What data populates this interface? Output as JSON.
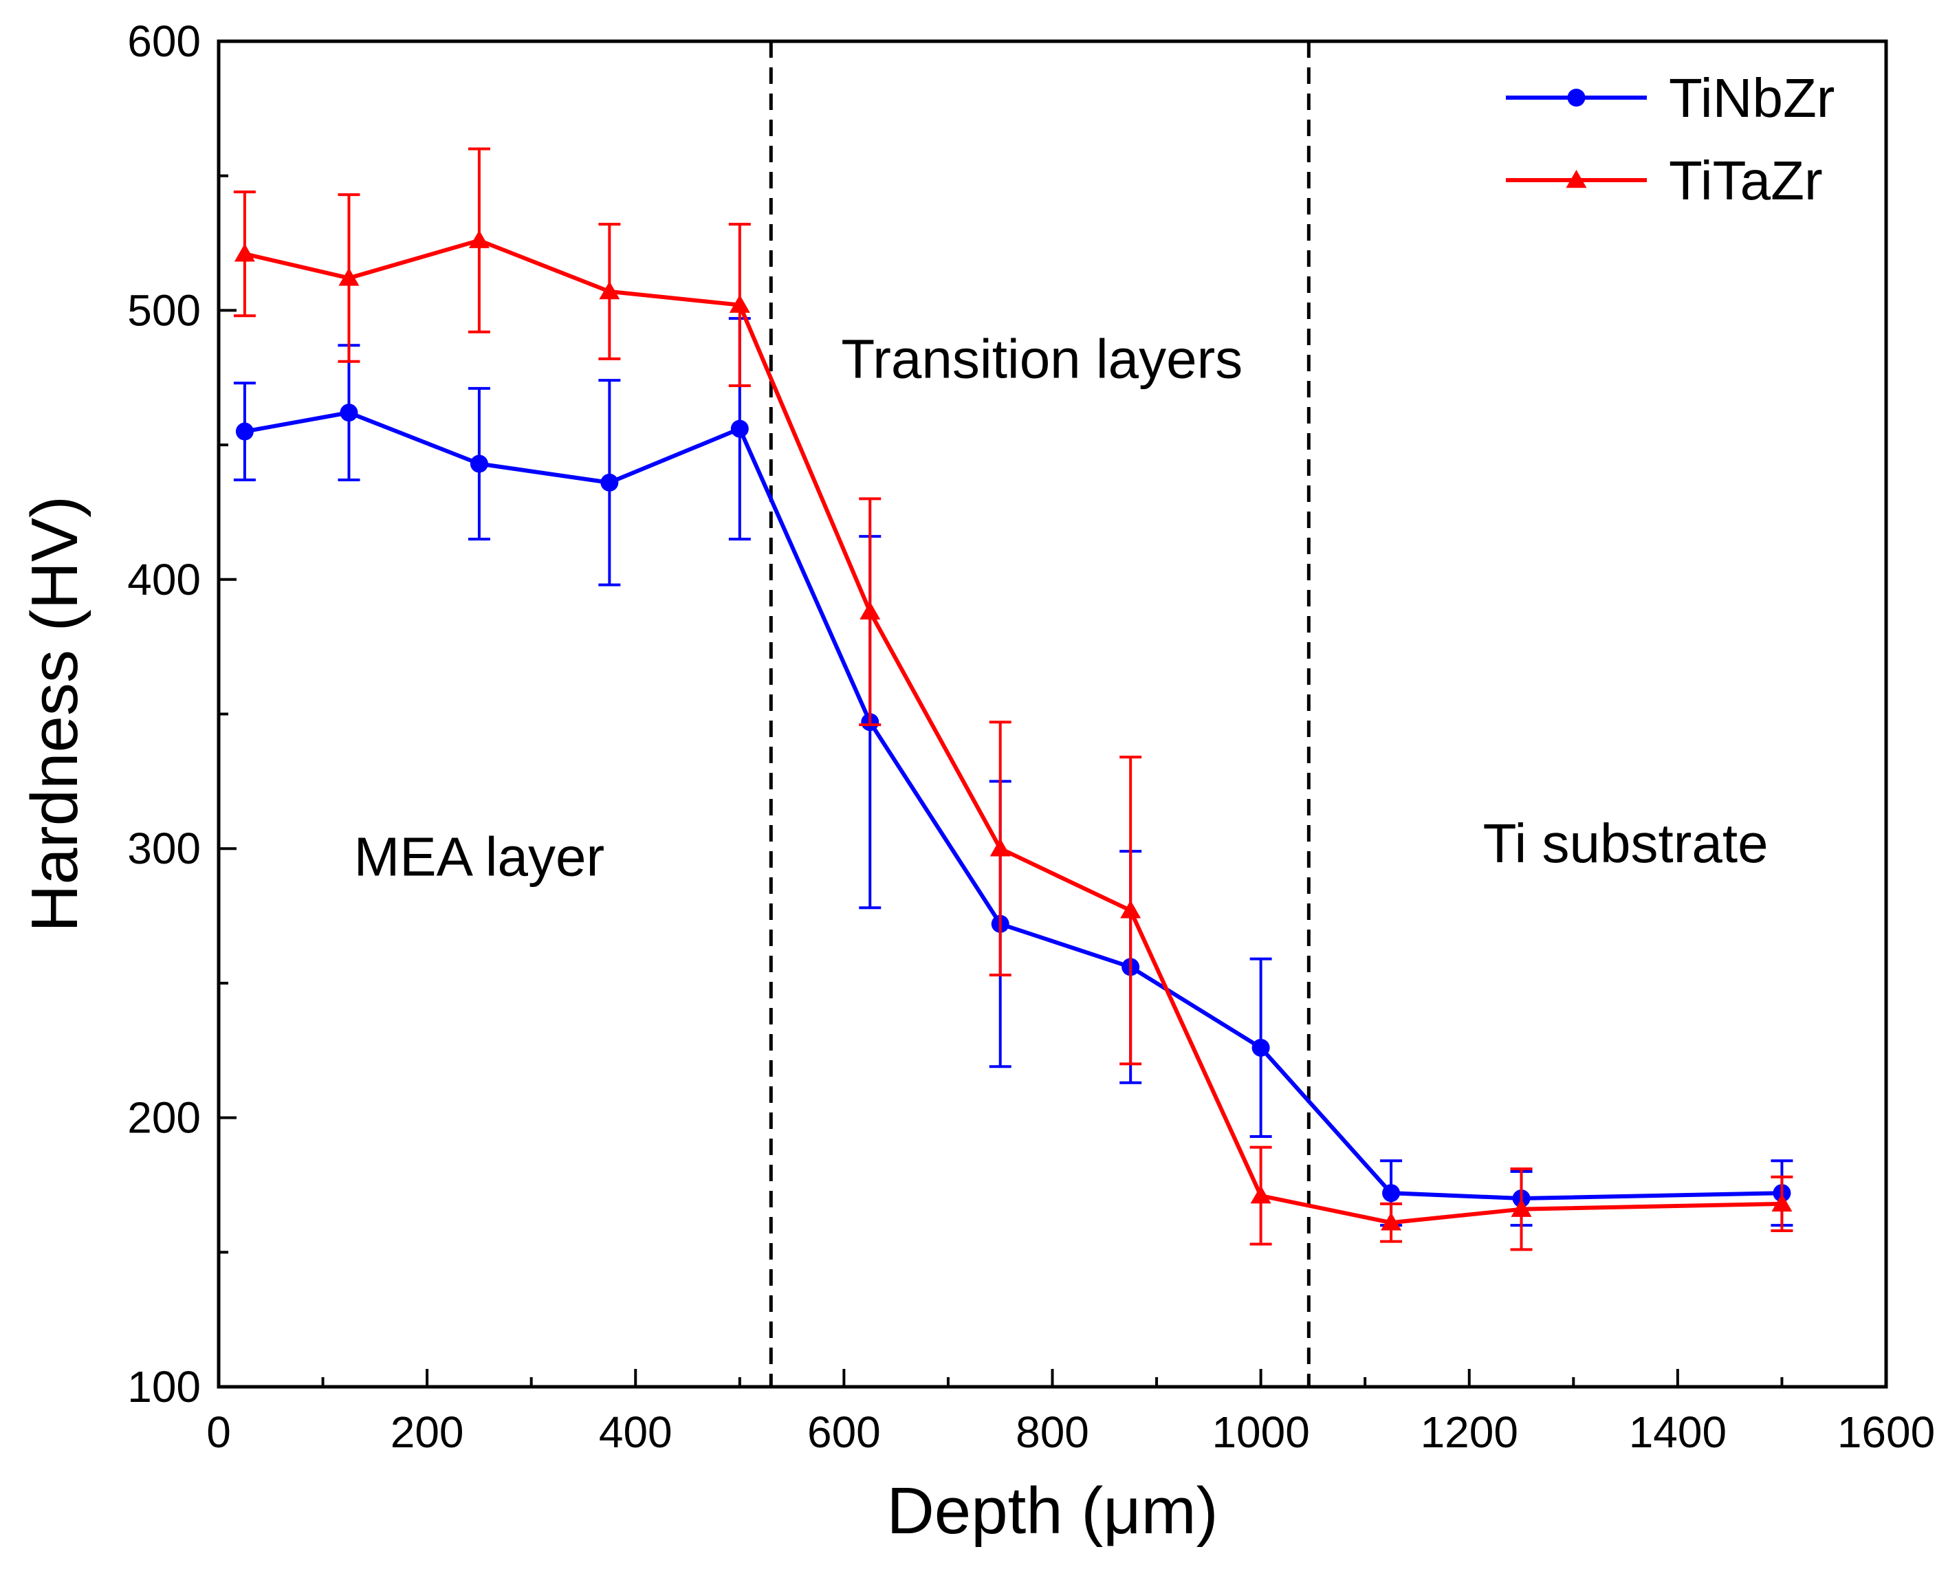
{
  "chart_data": {
    "type": "line",
    "xlabel": "Depth (μm)",
    "ylabel": "Hardness (HV)",
    "xlim": [
      0,
      1600
    ],
    "ylim": [
      100,
      600
    ],
    "xticks": [
      0,
      200,
      400,
      600,
      800,
      1000,
      1200,
      1400,
      1600
    ],
    "yticks": [
      100,
      200,
      300,
      400,
      500,
      600
    ],
    "grid": false,
    "legend_position": "top-right",
    "dividers": [
      530,
      1046
    ],
    "annotations": [
      {
        "text": "MEA layer",
        "x": 250,
        "y": 290
      },
      {
        "text": "Transition layers",
        "x": 790,
        "y": 475
      },
      {
        "text": "Ti substrate",
        "x": 1350,
        "y": 295
      }
    ],
    "series": [
      {
        "name": "TiNbZr",
        "color": "#0000ff",
        "marker": "circle",
        "x": [
          25,
          125,
          250,
          375,
          500,
          625,
          750,
          875,
          1000,
          1125,
          1250,
          1500
        ],
        "y": [
          455,
          462,
          443,
          436,
          456,
          347,
          272,
          256,
          226,
          172,
          170,
          172
        ],
        "err": [
          18,
          25,
          28,
          38,
          41,
          69,
          53,
          43,
          33,
          12,
          10,
          12
        ]
      },
      {
        "name": "TiTaZr",
        "color": "#ff0000",
        "marker": "triangle",
        "x": [
          25,
          125,
          250,
          375,
          500,
          625,
          750,
          875,
          1000,
          1125,
          1250,
          1500
        ],
        "y": [
          521,
          512,
          526,
          507,
          502,
          388,
          300,
          277,
          171,
          161,
          166,
          168
        ],
        "err": [
          23,
          31,
          34,
          25,
          30,
          42,
          47,
          57,
          18,
          7,
          15,
          10
        ]
      }
    ]
  }
}
